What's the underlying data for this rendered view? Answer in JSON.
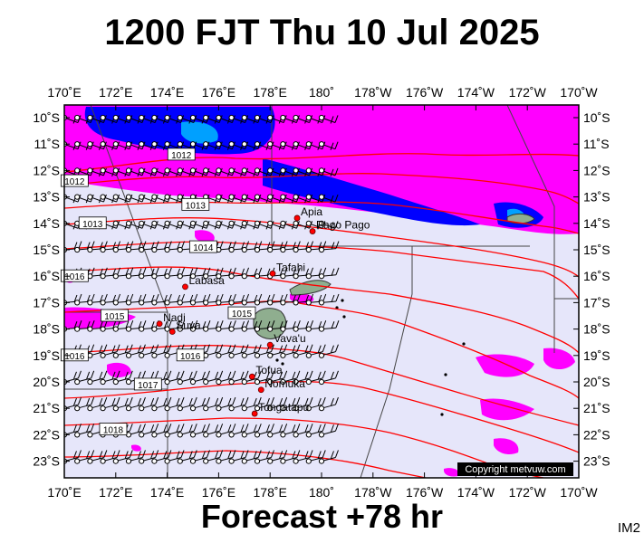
{
  "title": "1200 FJT Thu 10 Jul 2025",
  "footer": "Forecast +78 hr",
  "product_code": "IM2",
  "copyright": "Copyright metvuw.com",
  "colors": {
    "background": "#e6e6fa",
    "precip_light": "#ff00ff",
    "precip_mid": "#0000ff",
    "precip_heavy": "#00a0ff",
    "isobar": "#ff0000",
    "city": "#ff0000"
  },
  "longitude_labels": [
    "170˚E",
    "172˚E",
    "174˚E",
    "176˚E",
    "178˚E",
    "180˚",
    "178˚W",
    "176˚W",
    "174˚W",
    "172˚W",
    "170˚W"
  ],
  "latitude_labels": [
    "10˚S",
    "11˚S",
    "12˚S",
    "13˚S",
    "14˚S",
    "15˚S",
    "16˚S",
    "17˚S",
    "18˚S",
    "19˚S",
    "20˚S",
    "21˚S",
    "22˚S",
    "23˚S"
  ],
  "isobar_labels": [
    {
      "text": "1012",
      "lon": 170.8,
      "lat": -12.4
    },
    {
      "text": "1012",
      "lon": 179.1,
      "lat": -11.4
    },
    {
      "text": "1013",
      "lon": 172.2,
      "lat": -14.0
    },
    {
      "text": "1013",
      "lon": 180.2,
      "lat": -13.3
    },
    {
      "text": "1014",
      "lon": 180.8,
      "lat": -14.9
    },
    {
      "text": "1015",
      "lon": 183.8,
      "lat": -17.4
    },
    {
      "text": "1015",
      "lon": 173.9,
      "lat": -17.5
    },
    {
      "text": "1016",
      "lon": 170.8,
      "lat": -16.0
    },
    {
      "text": "1016",
      "lon": 170.8,
      "lat": -19.0
    },
    {
      "text": "1016",
      "lon": 179.8,
      "lat": -19.0
    },
    {
      "text": "1017",
      "lon": 176.5,
      "lat": -20.1
    },
    {
      "text": "1018",
      "lon": 173.8,
      "lat": -21.8
    }
  ],
  "places": [
    {
      "name": "Apia",
      "lon": 188.1,
      "lat": -13.8
    },
    {
      "name": "Pago Pago",
      "lon": 189.3,
      "lat": -14.3
    },
    {
      "name": "Tafahi",
      "lon": 186.2,
      "lat": -15.9
    },
    {
      "name": "Labasa",
      "lon": 179.4,
      "lat": -16.4
    },
    {
      "name": "Nadi",
      "lon": 177.4,
      "lat": -17.8
    },
    {
      "name": "Suva",
      "lon": 178.4,
      "lat": -18.1
    },
    {
      "name": "Vava'u",
      "lon": 186.0,
      "lat": -18.6
    },
    {
      "name": "Tofua",
      "lon": 184.6,
      "lat": -19.8
    },
    {
      "name": "Nomuka",
      "lon": 185.3,
      "lat": -20.3
    },
    {
      "name": "Tongatapu",
      "lon": 184.8,
      "lat": -21.2
    }
  ]
}
